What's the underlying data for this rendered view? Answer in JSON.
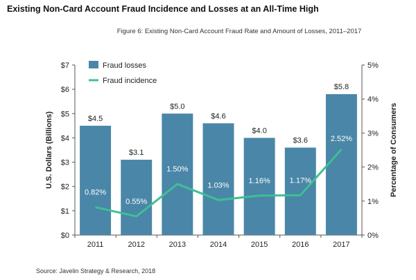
{
  "headline": "Existing Non-Card Account Fraud Incidence and Losses at an All-Time High",
  "source": "Source: Javelin Strategy & Research, 2018",
  "chart_data": {
    "type": "bar",
    "title": "Figure 6: Existing Non-Card Account Fraud Rate and Amount of Losses, 2011–2017",
    "categories": [
      "2011",
      "2012",
      "2013",
      "2014",
      "2015",
      "2016",
      "2017"
    ],
    "series": [
      {
        "name": "Fraud losses",
        "type": "bar",
        "axis": "left",
        "values": [
          4.5,
          3.1,
          5.0,
          4.6,
          4.0,
          3.6,
          5.8
        ],
        "labels": [
          "$4.5",
          "$3.1",
          "$5.0",
          "$4.6",
          "$4.0",
          "$3.6",
          "$5.8"
        ],
        "color": "#4a86a8"
      },
      {
        "name": "Fraud incidence",
        "type": "line",
        "axis": "right",
        "values": [
          0.82,
          0.55,
          1.5,
          1.03,
          1.16,
          1.17,
          2.52
        ],
        "labels": [
          "0.82%",
          "0.55%",
          "1.50%",
          "1.03%",
          "1.16%",
          "1.17%",
          "2.52%"
        ],
        "color": "#3fbf94"
      }
    ],
    "ylabel": "U.S. Dollars (Billions)",
    "ylim": [
      0,
      7
    ],
    "yticks": [
      "$0",
      "$1",
      "$2",
      "$3",
      "$4",
      "$5",
      "$6",
      "$7"
    ],
    "y2label": "Percentage of Consumers",
    "y2lim": [
      0,
      5
    ],
    "y2ticks": [
      "0%",
      "1%",
      "2%",
      "3%",
      "4%",
      "5%"
    ],
    "legend": "top-left",
    "grid": false
  }
}
